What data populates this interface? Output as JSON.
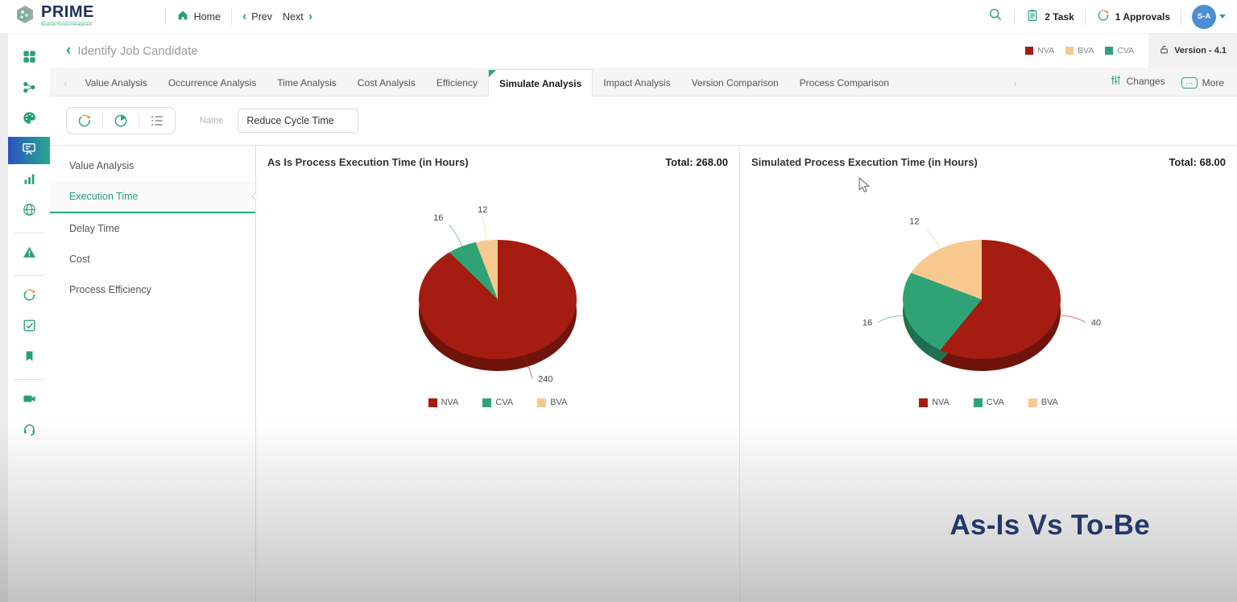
{
  "colors": {
    "accent": "#27a071",
    "brand_navy": "#1f2f63",
    "nva": "#a41d10",
    "cva": "#2fa376",
    "bva": "#f8c98e",
    "active_gradient": [
      "#2b52c4",
      "#27a98b"
    ],
    "caption_navy": "#24386b",
    "avatar_bg": "#4a8fd4"
  },
  "header": {
    "brand": "PRIME",
    "brand_sub": "Business Process Management",
    "home_label": "Home",
    "prev_label": "Prev",
    "next_label": "Next",
    "task_label": "2 Task",
    "approvals_label": "1 Approvals",
    "avatar_initials": "S-A"
  },
  "crumb": {
    "title": "Identify Job Candidate",
    "legend": [
      {
        "label": "NVA",
        "color": "#a41d10"
      },
      {
        "label": "BVA",
        "color": "#f8c98e"
      },
      {
        "label": "CVA",
        "color": "#2fa376"
      }
    ],
    "version_label": "Version - 4.1"
  },
  "tabs": {
    "items": [
      "Value Analysis",
      "Occurrence Analysis",
      "Time Analysis",
      "Cost Analysis",
      "Efficiency",
      "Simulate Analysis",
      "Impact Analysis",
      "Version Comparison",
      "Process Comparison"
    ],
    "active": "Simulate Analysis",
    "changes_label": "Changes",
    "more_label": "More"
  },
  "toolbar": {
    "name_label": "Name",
    "name_value": "Reduce Cycle Time",
    "icons": [
      "sync-icon",
      "pie-chart-icon",
      "list-icon"
    ]
  },
  "sidebar": {
    "icons": [
      "dashboard",
      "workflow",
      "palette",
      "presentation",
      "bar-chart",
      "globe",
      "|",
      "warning",
      "|",
      "sync",
      "checklist",
      "bookmark",
      "|",
      "video",
      "headset"
    ],
    "active": "presentation"
  },
  "side_menu": {
    "items": [
      "Value Analysis",
      "Execution Time",
      "Delay Time",
      "Cost",
      "Process Efficiency"
    ],
    "active": "Execution Time"
  },
  "caption": "As-Is Vs To-Be",
  "chart_data": [
    {
      "type": "pie",
      "style": "3d",
      "title": "As Is Process Execution Time (in Hours)",
      "total_label": "Total: 268.00",
      "total": 268,
      "slices": [
        {
          "label": "NVA",
          "value": 240,
          "color": "#a41d10"
        },
        {
          "label": "CVA",
          "value": 16,
          "color": "#2fa376"
        },
        {
          "label": "BVA",
          "value": 12,
          "color": "#f8c98e"
        }
      ],
      "legend": [
        "NVA",
        "CVA",
        "BVA"
      ],
      "legend_position": "bottom",
      "start_angle_deg": 0,
      "direction": "clockwise",
      "data_labels": "values"
    },
    {
      "type": "pie",
      "style": "3d",
      "title": "Simulated Process Execution Time (in Hours)",
      "total_label": "Total: 68.00",
      "total": 68,
      "slices": [
        {
          "label": "NVA",
          "value": 40,
          "color": "#a41d10"
        },
        {
          "label": "CVA",
          "value": 16,
          "color": "#2fa376"
        },
        {
          "label": "BVA",
          "value": 12,
          "color": "#f8c98e"
        }
      ],
      "legend": [
        "NVA",
        "CVA",
        "BVA"
      ],
      "legend_position": "bottom",
      "start_angle_deg": 0,
      "direction": "clockwise",
      "data_labels": "values"
    }
  ]
}
